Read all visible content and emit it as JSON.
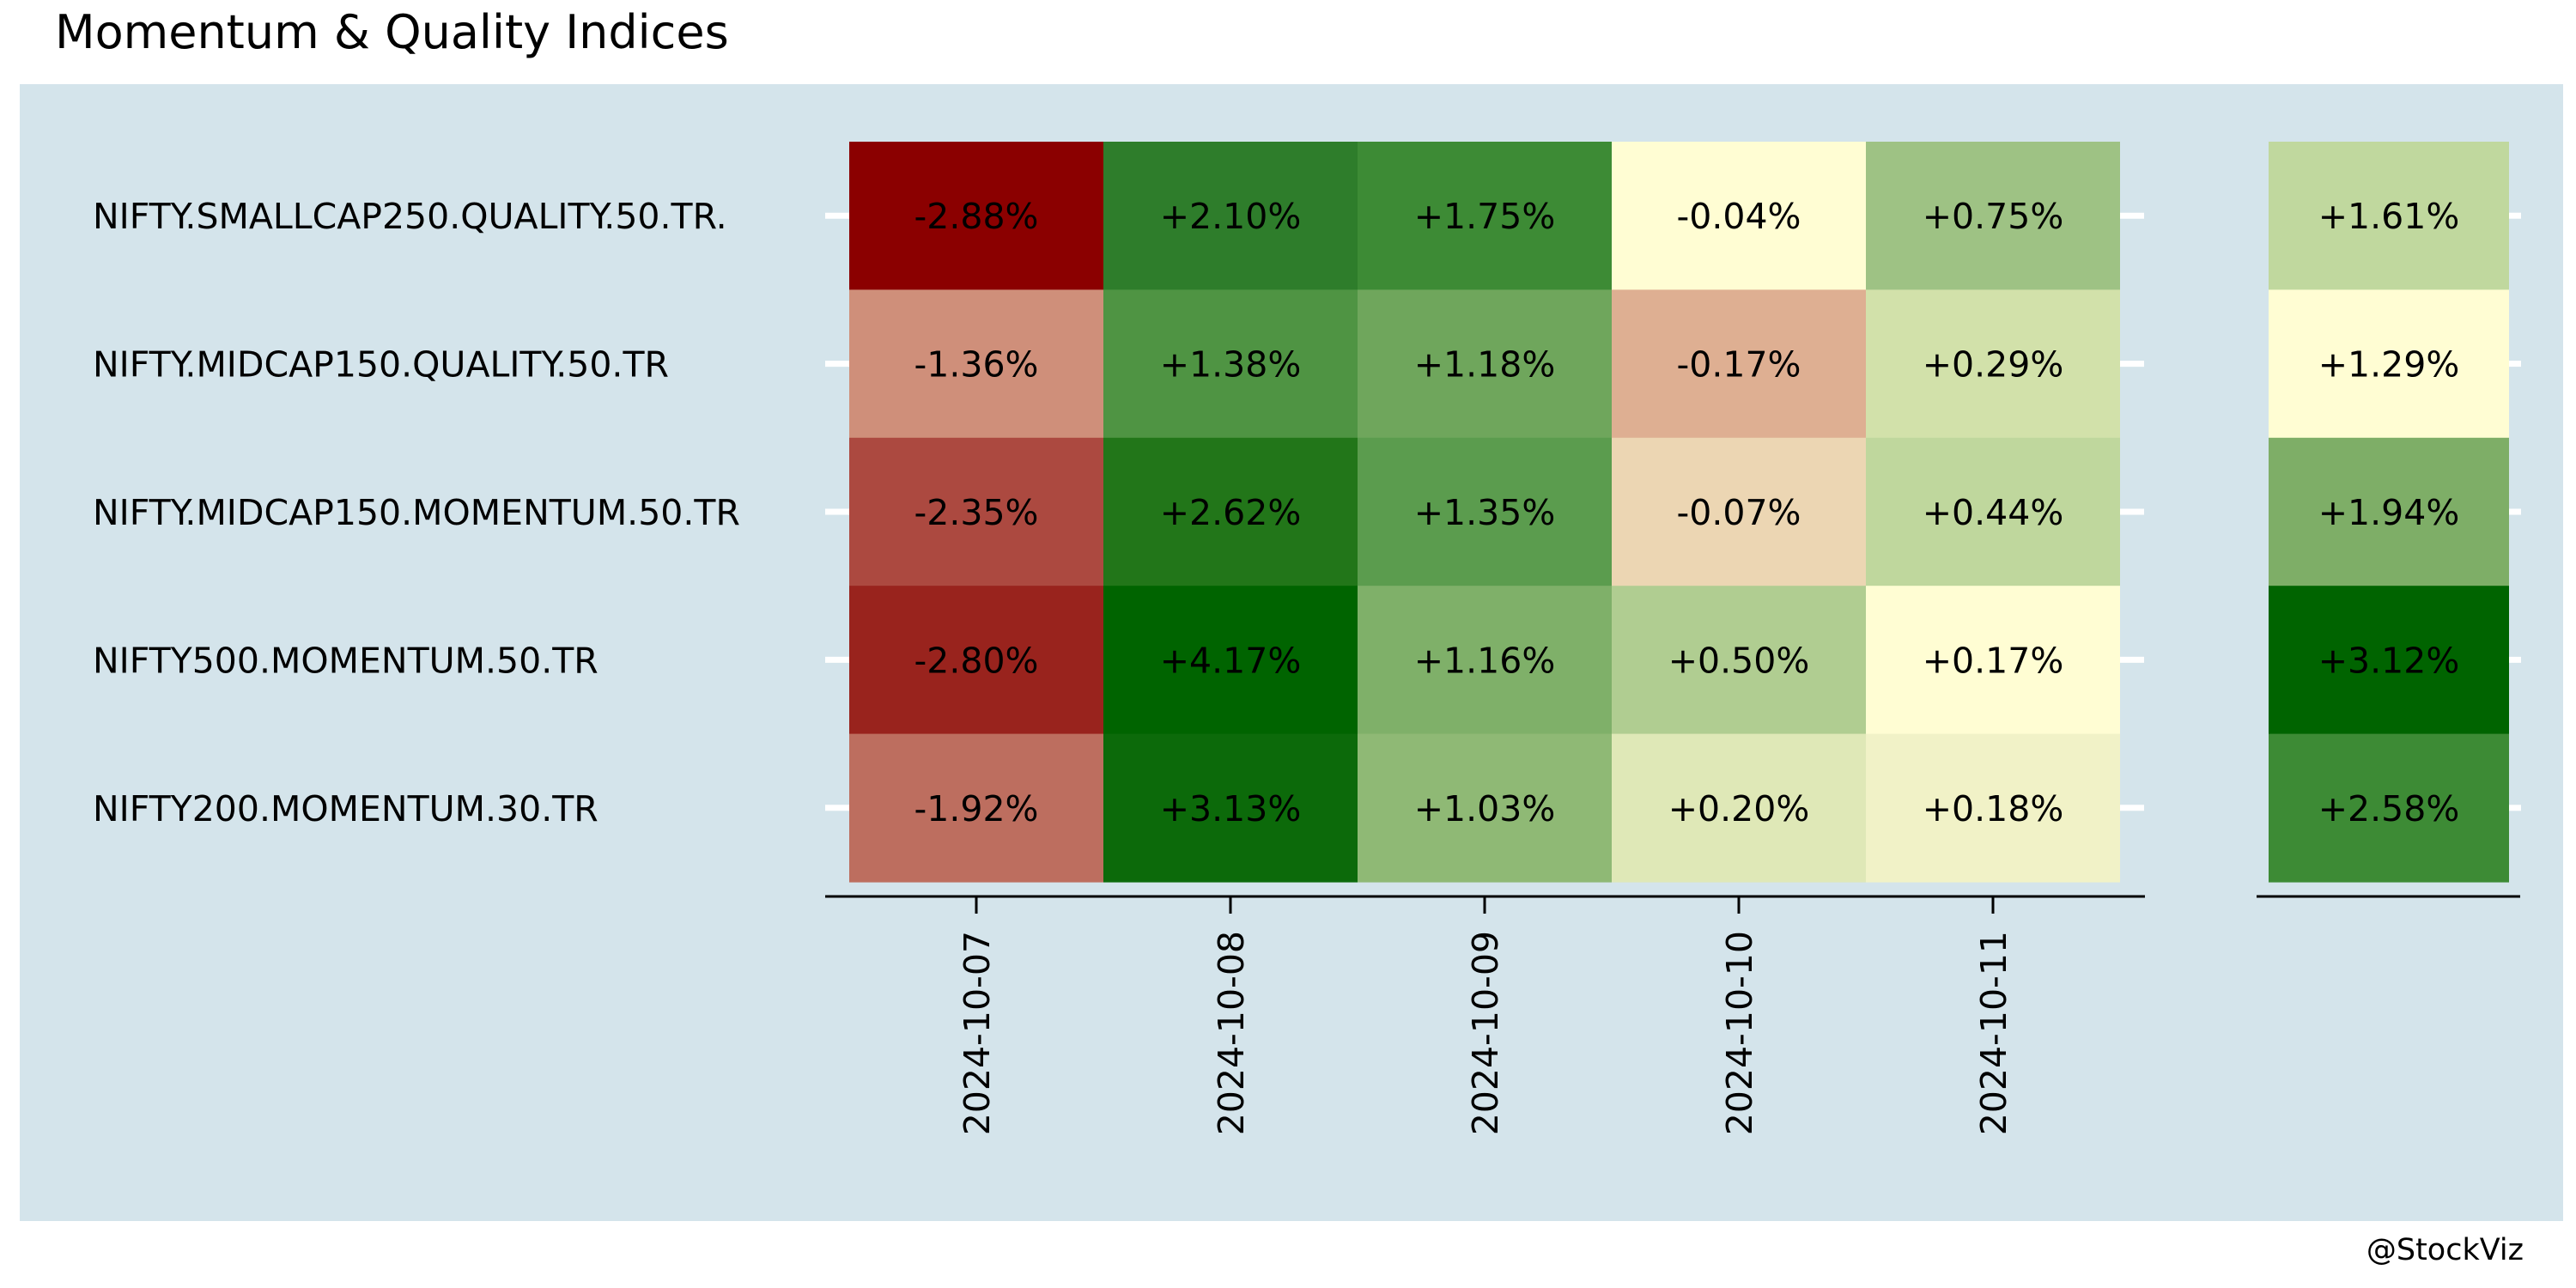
{
  "chart_data": {
    "type": "heatmap",
    "title": "Momentum & Quality Indices",
    "rows": [
      "NIFTY.SMALLCAP250.QUALITY.50.TR.",
      "NIFTY.MIDCAP150.QUALITY.50.TR",
      "NIFTY.MIDCAP150.MOMENTUM.50.TR",
      "NIFTY500.MOMENTUM.50.TR",
      "NIFTY200.MOMENTUM.30.TR"
    ],
    "columns": [
      "2024-10-07",
      "2024-10-08",
      "2024-10-09",
      "2024-10-10",
      "2024-10-11"
    ],
    "values": [
      [
        -2.88,
        2.1,
        1.75,
        -0.04,
        0.75
      ],
      [
        -1.36,
        1.38,
        1.18,
        -0.17,
        0.29
      ],
      [
        -2.35,
        2.62,
        1.35,
        -0.07,
        0.44
      ],
      [
        -2.8,
        4.17,
        1.16,
        0.5,
        0.17
      ],
      [
        -1.92,
        3.13,
        1.03,
        0.2,
        0.18
      ]
    ],
    "labels": [
      [
        "-2.88%",
        "+2.10%",
        "+1.75%",
        "-0.04%",
        "+0.75%"
      ],
      [
        "-1.36%",
        "+1.38%",
        "+1.18%",
        "-0.17%",
        "+0.29%"
      ],
      [
        "-2.35%",
        "+2.62%",
        "+1.35%",
        "-0.07%",
        "+0.44%"
      ],
      [
        "-2.80%",
        "+4.17%",
        "+1.16%",
        "+0.50%",
        "+0.17%"
      ],
      [
        "-1.92%",
        "+3.13%",
        "+1.03%",
        "+0.20%",
        "+0.18%"
      ]
    ],
    "cell_colors": [
      [
        "#8b0000",
        "#2e7d2b",
        "#3d8b35",
        "#fffdd3",
        "#9ec284"
      ],
      [
        "#cf8f7a",
        "#4f9443",
        "#6fa65c",
        "#deaf92",
        "#d2e1aa"
      ],
      [
        "#ac4940",
        "#227619",
        "#5b9c4e",
        "#ecd6b3",
        "#bfd79d"
      ],
      [
        "#99231d",
        "#006400",
        "#7fb069",
        "#b0cd91",
        "#fffdd3"
      ],
      [
        "#bd6e5f",
        "#0c6a0a",
        "#8fb975",
        "#dfe8b7",
        "#f1f2c7"
      ]
    ],
    "summary": {
      "values": [
        1.61,
        1.29,
        1.94,
        3.12,
        2.58
      ],
      "labels": [
        "+1.61%",
        "+1.29%",
        "+1.94%",
        "+3.12%",
        "+2.58%"
      ],
      "cell_colors": [
        "#c0d89e",
        "#fffdd3",
        "#7eae67",
        "#006400",
        "#3d8b35"
      ]
    },
    "colors": {
      "panel_background": "#d4e4eb",
      "tick_color": "#ffffff",
      "axis_color": "#000000"
    },
    "credit": "@StockViz"
  }
}
